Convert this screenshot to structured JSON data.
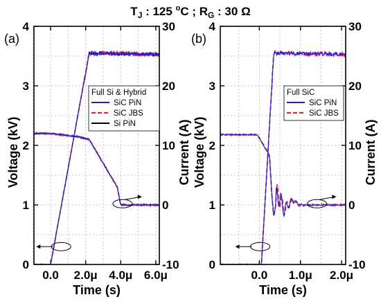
{
  "title": {
    "tj": "T",
    "tj_sub": "J",
    "tj_value": " : 125 ",
    "deg": "o",
    "tj_unit": "C ; R",
    "rg_sub": "G",
    "rg_value": " : 30 Ω"
  },
  "colors": {
    "sic_pin": "#1a1aff",
    "sic_jbs": "#ff1a1a",
    "si_pin": "#000000"
  },
  "chart_data": [
    {
      "type": "line",
      "panel_label": "(a)",
      "xlabel": "Time (s)",
      "ylabel": "Voltage (kV)",
      "y2label": "Current (A)",
      "xlim": [
        -9.5e-07,
        6.2e-06
      ],
      "ylim": [
        0,
        4
      ],
      "y2lim": [
        -10,
        30
      ],
      "x_ticks": [
        0,
        2e-06,
        4e-06,
        6e-06
      ],
      "x_tick_labels": [
        "0.0",
        "2.0μ",
        "4.0μ",
        "6.0μ"
      ],
      "y_ticks": [
        0,
        1,
        2,
        3,
        4
      ],
      "y_tick_labels": [
        "0",
        "1",
        "2",
        "3",
        "4"
      ],
      "y2_ticks": [
        -10,
        0,
        10,
        20,
        30
      ],
      "y2_tick_labels": [
        "-10",
        "0",
        "10",
        "20",
        "30"
      ],
      "grid": true,
      "legend_title": "Full Si & Hybrid",
      "legend_position": "center-right",
      "series": [
        {
          "name": "SiC PiN",
          "style": "solid",
          "color_key": "sic_pin"
        },
        {
          "name": "SiC JBS",
          "style": "dashed",
          "color_key": "sic_jbs"
        },
        {
          "name": "Si PiN",
          "style": "solid",
          "color_key": "si_pin"
        }
      ],
      "voltage_kV": {
        "x": [
          -9.5e-07,
          0,
          1.5e-06,
          2.2e-06,
          2.8e-06,
          3.5e-06,
          3.8e-06,
          4e-06,
          6.2e-06
        ],
        "y": [
          2.2,
          2.2,
          2.15,
          2.1,
          1.8,
          1.45,
          1.3,
          1.0,
          1.0
        ]
      },
      "current_A": {
        "x": [
          -9.5e-07,
          0,
          2.2e-06,
          6.2e-06
        ],
        "y": [
          -10,
          -10,
          25.5,
          25.3
        ]
      },
      "annotations": [
        {
          "type": "ellipse-arrow",
          "points_to": "voltage",
          "at": [
            6e-07,
            0.3
          ]
        },
        {
          "type": "ellipse-arrow",
          "points_to": "current",
          "at": [
            4.1e-06,
            1.02
          ]
        }
      ]
    },
    {
      "type": "line",
      "panel_label": "(b)",
      "xlabel": "Time (s)",
      "ylabel": "Voltage (kV)",
      "y2label": "Current (A)",
      "xlim": [
        -9.5e-07,
        2.1e-06
      ],
      "ylim": [
        0,
        4
      ],
      "y2lim": [
        -10,
        30
      ],
      "x_ticks": [
        0,
        1e-06,
        2e-06
      ],
      "x_tick_labels": [
        "0.0",
        "1.0μ",
        "2.0μ"
      ],
      "y_ticks": [
        0,
        1,
        2,
        3,
        4
      ],
      "y_tick_labels": [
        "0",
        "1",
        "2",
        "3",
        "4"
      ],
      "y2_ticks": [
        -10,
        0,
        10,
        20,
        30
      ],
      "y2_tick_labels": [
        "-10",
        "0",
        "10",
        "20",
        "30"
      ],
      "grid": true,
      "legend_title": "Full SiC",
      "legend_position": "center-right",
      "series": [
        {
          "name": "SiC PiN",
          "style": "solid",
          "color_key": "sic_pin"
        },
        {
          "name": "SiC JBS",
          "style": "dashed",
          "color_key": "sic_jbs"
        }
      ],
      "voltage_kV": {
        "x": [
          -9.5e-07,
          -5e-08,
          1.5e-07,
          2.5e-07,
          3e-07,
          3.5e-07,
          4.5e-07,
          6e-07,
          8e-07,
          1e-06,
          2.1e-06
        ],
        "y": [
          2.18,
          2.18,
          1.95,
          1.82,
          1.2,
          0.8,
          1.2,
          0.92,
          1.08,
          1.0,
          1.0
        ]
      },
      "current_A": {
        "x": [
          -9.5e-07,
          5e-08,
          3.5e-07,
          2.1e-06
        ],
        "y": [
          -10,
          -10,
          25.5,
          25.3
        ]
      },
      "annotations": [
        {
          "type": "ellipse-arrow",
          "points_to": "voltage",
          "at": [
            2e-08,
            0.3
          ]
        },
        {
          "type": "ellipse-arrow",
          "points_to": "current",
          "at": [
            1.4e-06,
            1.02
          ]
        }
      ]
    }
  ]
}
